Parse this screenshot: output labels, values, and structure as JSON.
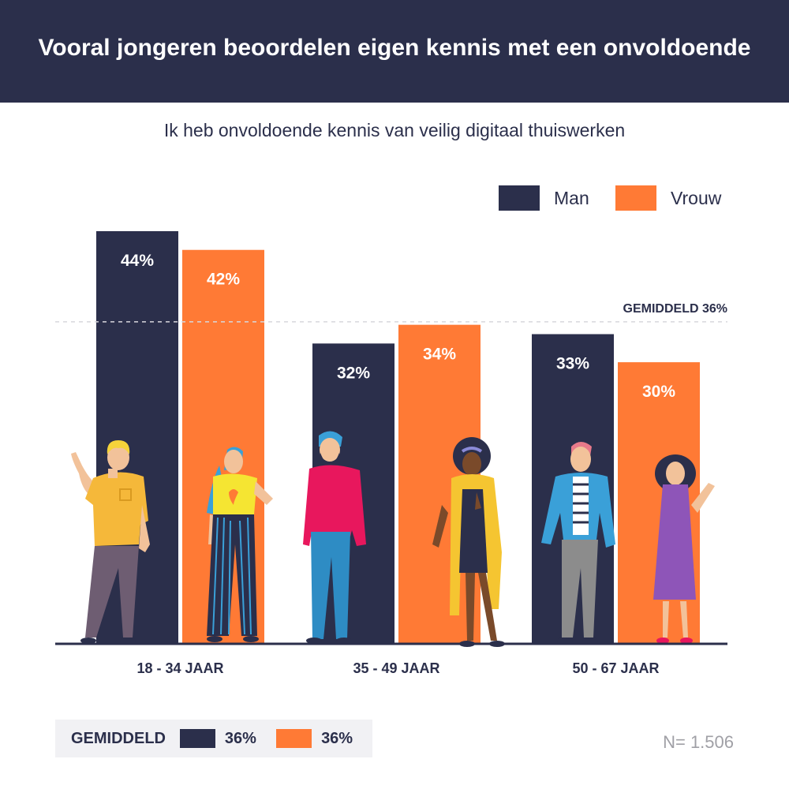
{
  "header": {
    "title": "Vooral jongeren beoordelen eigen kennis met een onvoldoende"
  },
  "subtitle": "Ik heb onvoldoende kennis van veilig digitaal thuiswerken",
  "legend": {
    "man": "Man",
    "vrouw": "Vrouw"
  },
  "colors": {
    "man": "#2b2f4b",
    "vrouw": "#ff7a35",
    "header": "#2b2f4b"
  },
  "chart_data": {
    "type": "bar",
    "title": "Ik heb onvoldoende kennis van veilig digitaal thuiswerken",
    "categories": [
      "18 - 34 JAAR",
      "35 - 49 JAAR",
      "50 - 67 JAAR"
    ],
    "series": [
      {
        "name": "Man",
        "values": [
          44,
          32,
          33
        ],
        "labels": [
          "44%",
          "32%",
          "33%"
        ]
      },
      {
        "name": "Vrouw",
        "values": [
          42,
          34,
          30
        ],
        "labels": [
          "42%",
          "34%",
          "30%"
        ]
      }
    ],
    "reference_line": {
      "value": 36,
      "label": "GEMIDDELD 36%"
    },
    "ylim": [
      0,
      44
    ],
    "grid": false,
    "legend_position": "top-right"
  },
  "footer": {
    "title": "GEMIDDELD",
    "man_value": "36%",
    "vrouw_value": "36%",
    "sample": "N= 1.506"
  }
}
